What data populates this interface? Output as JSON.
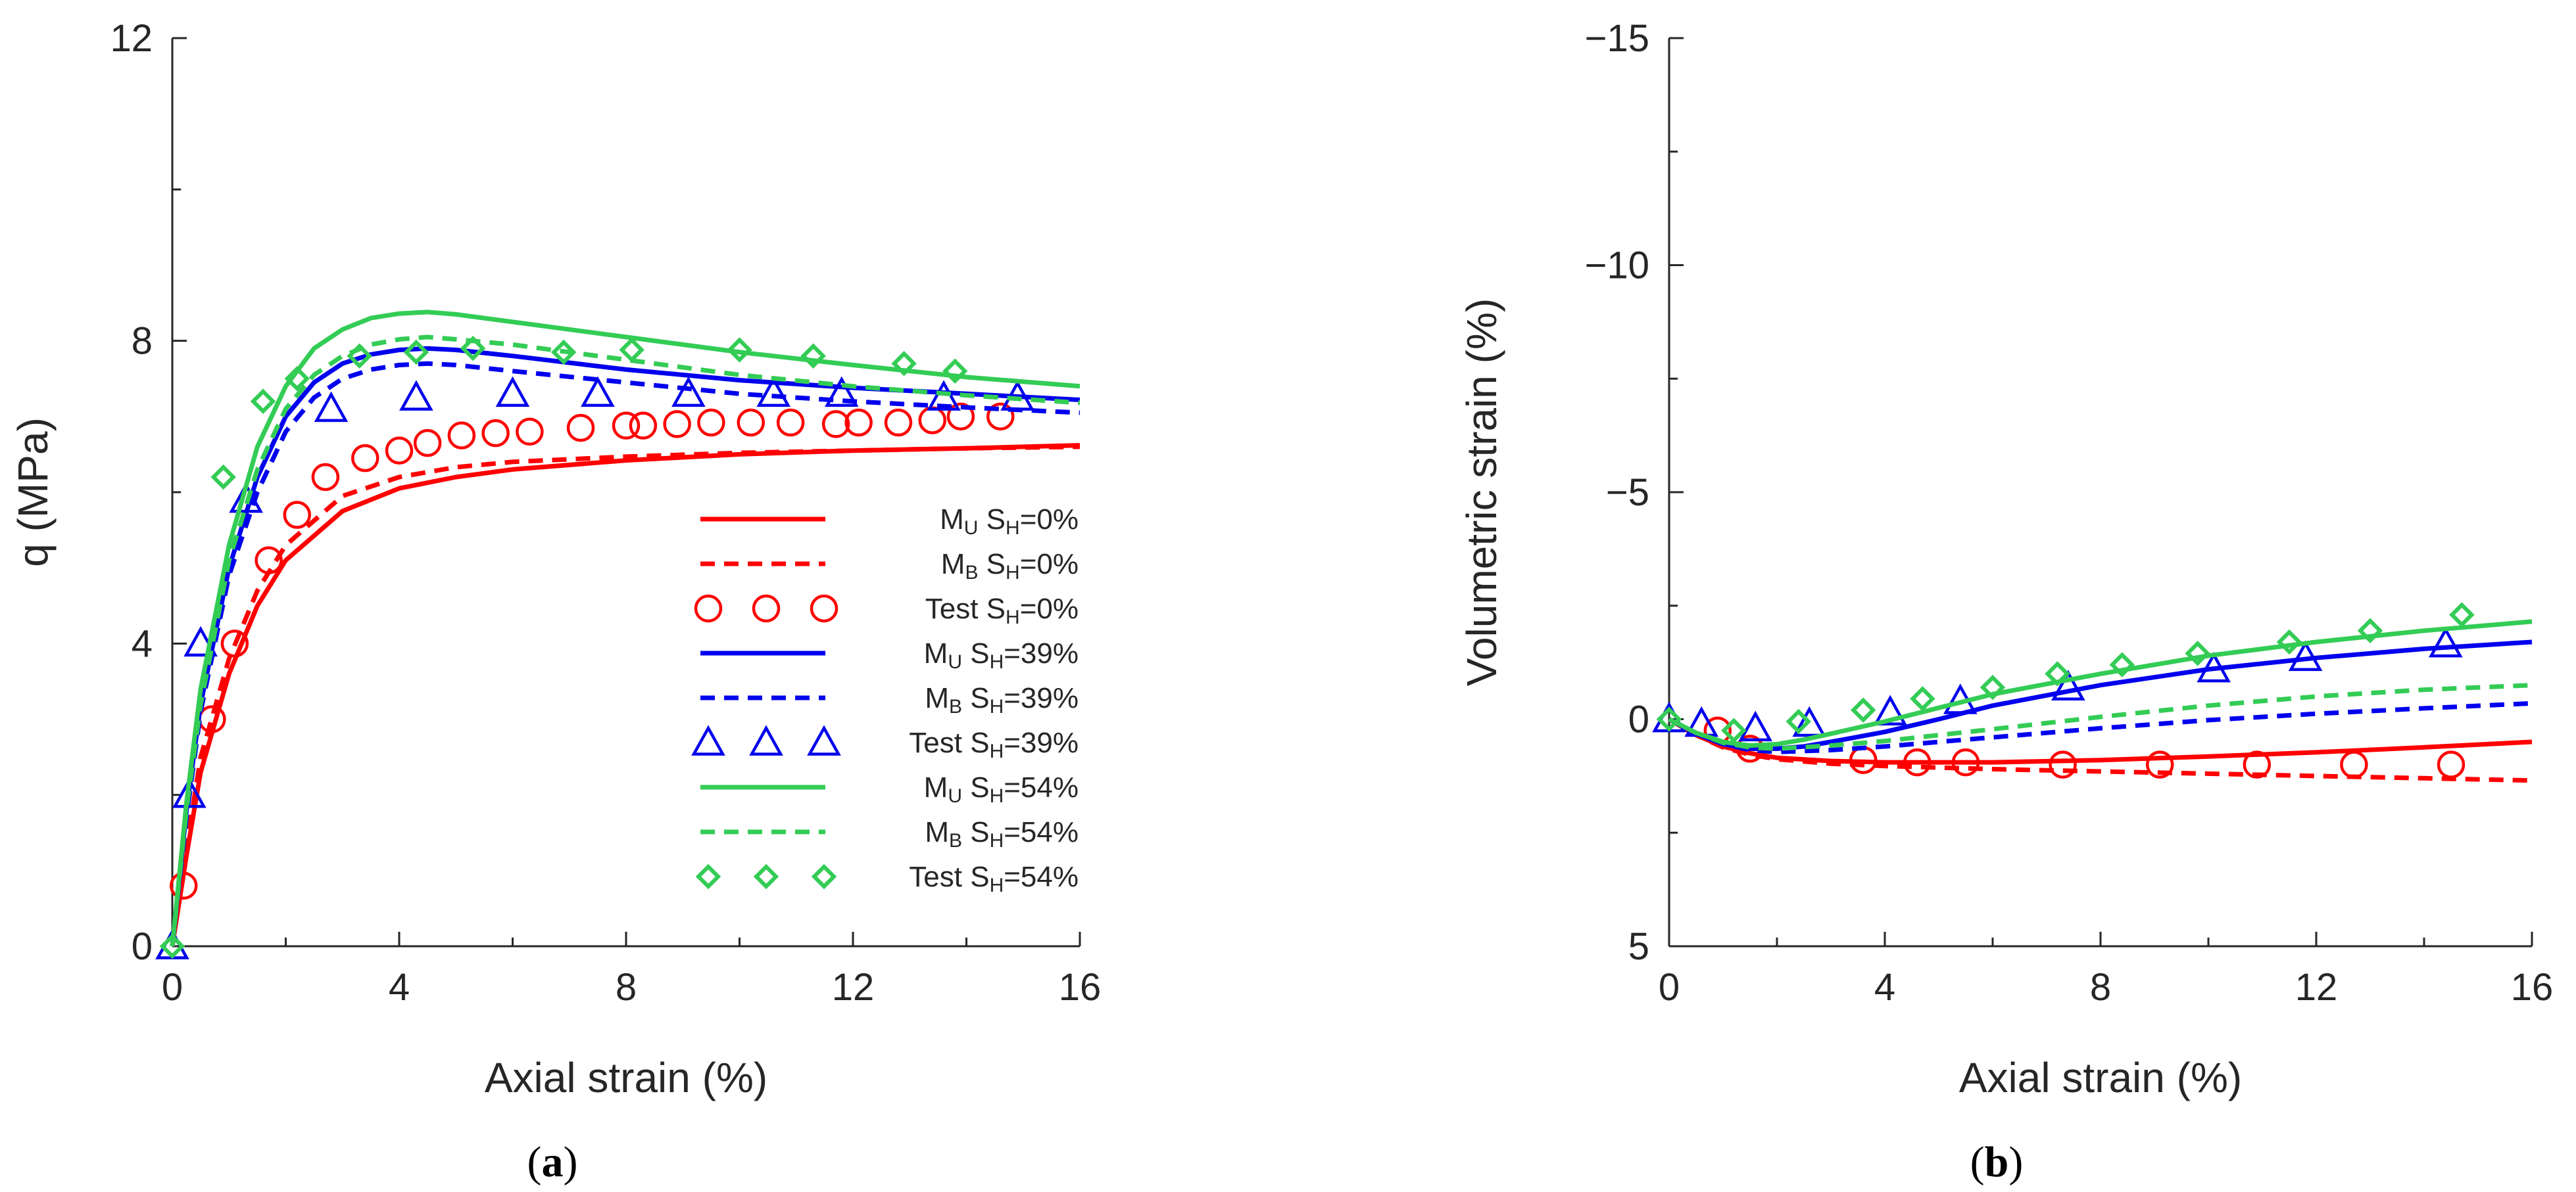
{
  "colors": {
    "s0": "#ff0000",
    "s39": "#0000ee",
    "s54": "#33cc55",
    "axis": "#262626"
  },
  "chart_data": [
    {
      "type": "line",
      "panel_label": "a",
      "xlabel": "Axial strain (%)",
      "ylabel": "q (MPa)",
      "xlim": [
        0,
        16
      ],
      "ylim": [
        0,
        12
      ],
      "y_inverted": false,
      "xticks": [
        "0",
        "4",
        "8",
        "12",
        "16"
      ],
      "yticks": [
        "0",
        "4",
        "8",
        "12"
      ],
      "xtick_values": [
        0,
        4,
        8,
        12,
        16
      ],
      "ytick_values": [
        0,
        4,
        8,
        12
      ],
      "legend": [
        {
          "main": "M",
          "sub": "U",
          "mid": " S",
          "sub2": "H",
          "tail": "=0%",
          "color": "s0",
          "style": "solid"
        },
        {
          "main": "M",
          "sub": "B",
          "mid": " S",
          "sub2": "H",
          "tail": "=0%",
          "color": "s0",
          "style": "dashed"
        },
        {
          "main": "Test S",
          "sub": "",
          "mid": "",
          "sub2": "H",
          "tail": "=0%",
          "color": "s0",
          "style": "circle"
        },
        {
          "main": "M",
          "sub": "U",
          "mid": " S",
          "sub2": "H",
          "tail": "=39%",
          "color": "s39",
          "style": "solid"
        },
        {
          "main": "M",
          "sub": "B",
          "mid": " S",
          "sub2": "H",
          "tail": "=39%",
          "color": "s39",
          "style": "dashed"
        },
        {
          "main": "Test S",
          "sub": "",
          "mid": "",
          "sub2": "H",
          "tail": "=39%",
          "color": "s39",
          "style": "triangle"
        },
        {
          "main": "M",
          "sub": "U",
          "mid": " S",
          "sub2": "H",
          "tail": "=54%",
          "color": "s54",
          "style": "solid"
        },
        {
          "main": "M",
          "sub": "B",
          "mid": " S",
          "sub2": "H",
          "tail": "=54%",
          "color": "s54",
          "style": "dashed"
        },
        {
          "main": "Test S",
          "sub": "",
          "mid": "",
          "sub2": "H",
          "tail": "=54%",
          "color": "s54",
          "style": "diamond"
        }
      ],
      "series": [
        {
          "name": "MU SH=0%",
          "color": "s0",
          "style": "solid",
          "x": [
            0,
            0.25,
            0.5,
            1,
            1.5,
            2,
            3,
            4,
            5,
            6,
            8,
            10,
            12,
            14,
            16
          ],
          "y": [
            0,
            1.2,
            2.3,
            3.6,
            4.5,
            5.1,
            5.75,
            6.05,
            6.2,
            6.3,
            6.42,
            6.5,
            6.55,
            6.58,
            6.62
          ]
        },
        {
          "name": "MB SH=0%",
          "color": "s0",
          "style": "dashed",
          "x": [
            0,
            0.25,
            0.5,
            1,
            1.5,
            2,
            3,
            4,
            5,
            6,
            8,
            10,
            12,
            14,
            16
          ],
          "y": [
            0,
            1.3,
            2.5,
            3.8,
            4.7,
            5.3,
            5.95,
            6.2,
            6.33,
            6.4,
            6.47,
            6.52,
            6.55,
            6.58,
            6.6
          ]
        },
        {
          "name": "Test SH=0%",
          "color": "s0",
          "style": "circle",
          "x": [
            0.2,
            0.7,
            1.1,
            1.7,
            2.2,
            2.7,
            3.4,
            4.0,
            4.5,
            5.1,
            5.7,
            6.3,
            7.2,
            8.0,
            8.3,
            8.9,
            9.5,
            10.2,
            10.9,
            11.7,
            12.1,
            12.8,
            13.4,
            13.9,
            14.6
          ],
          "y": [
            0.8,
            3.0,
            4.0,
            5.1,
            5.7,
            6.2,
            6.45,
            6.55,
            6.65,
            6.75,
            6.78,
            6.8,
            6.85,
            6.88,
            6.88,
            6.9,
            6.92,
            6.92,
            6.92,
            6.9,
            6.92,
            6.92,
            6.95,
            7.0,
            7.0
          ]
        },
        {
          "name": "MU SH=39%",
          "color": "s39",
          "style": "solid",
          "x": [
            0,
            0.25,
            0.5,
            1,
            1.5,
            2,
            2.5,
            3,
            3.5,
            4,
            4.5,
            5,
            6,
            8,
            10,
            12,
            14,
            16
          ],
          "y": [
            0,
            1.8,
            3.2,
            5.0,
            6.2,
            7.0,
            7.45,
            7.7,
            7.82,
            7.88,
            7.9,
            7.88,
            7.8,
            7.62,
            7.48,
            7.38,
            7.3,
            7.22
          ]
        },
        {
          "name": "MB SH=39%",
          "color": "s39",
          "style": "dashed",
          "x": [
            0,
            0.25,
            0.5,
            1,
            1.5,
            2,
            2.5,
            3,
            3.5,
            4,
            4.5,
            5,
            6,
            8,
            10,
            12,
            14,
            16
          ],
          "y": [
            0,
            1.7,
            3.1,
            4.9,
            6.0,
            6.8,
            7.25,
            7.5,
            7.62,
            7.68,
            7.7,
            7.68,
            7.6,
            7.45,
            7.3,
            7.2,
            7.12,
            7.05
          ]
        },
        {
          "name": "Test SH=39%",
          "color": "s39",
          "style": "triangle",
          "x": [
            0,
            0.3,
            0.5,
            1.3,
            2.8,
            4.3,
            6.0,
            7.5,
            9.1,
            10.6,
            11.8,
            13.6,
            14.9
          ],
          "y": [
            0,
            2.0,
            4.0,
            5.9,
            7.1,
            7.25,
            7.3,
            7.3,
            7.3,
            7.3,
            7.3,
            7.25,
            7.25
          ]
        },
        {
          "name": "MU SH=54%",
          "color": "s54",
          "style": "solid",
          "x": [
            0,
            0.25,
            0.5,
            1,
            1.5,
            2,
            2.5,
            3,
            3.5,
            4,
            4.5,
            5,
            6,
            8,
            10,
            12,
            14,
            16
          ],
          "y": [
            0,
            1.9,
            3.4,
            5.3,
            6.6,
            7.4,
            7.9,
            8.15,
            8.3,
            8.36,
            8.38,
            8.35,
            8.25,
            8.05,
            7.85,
            7.68,
            7.52,
            7.4
          ]
        },
        {
          "name": "MB SH=54%",
          "color": "s54",
          "style": "dashed",
          "x": [
            0,
            0.25,
            0.5,
            1,
            1.5,
            2,
            2.5,
            3,
            3.5,
            4,
            4.5,
            5,
            6,
            8,
            10,
            12,
            14,
            16
          ],
          "y": [
            0,
            1.8,
            3.2,
            5.1,
            6.3,
            7.1,
            7.55,
            7.8,
            7.95,
            8.02,
            8.05,
            8.02,
            7.95,
            7.75,
            7.55,
            7.4,
            7.28,
            7.18
          ]
        },
        {
          "name": "Test SH=54%",
          "color": "s54",
          "style": "diamond",
          "x": [
            0,
            0.9,
            1.6,
            2.2,
            3.3,
            4.3,
            5.3,
            6.9,
            8.1,
            10.0,
            11.3,
            12.9,
            13.8
          ],
          "y": [
            0,
            6.2,
            7.2,
            7.5,
            7.8,
            7.85,
            7.9,
            7.85,
            7.88,
            7.88,
            7.8,
            7.7,
            7.6
          ]
        }
      ]
    },
    {
      "type": "line",
      "panel_label": "b",
      "xlabel": "Axial strain (%)",
      "ylabel": "Volumetric strain (%)",
      "xlim": [
        0,
        16
      ],
      "ylim": [
        -15,
        5
      ],
      "y_inverted": true,
      "xticks": [
        "0",
        "4",
        "8",
        "12",
        "16"
      ],
      "yticks": [
        "−15",
        "−10",
        "−5",
        "0",
        "5"
      ],
      "xtick_values": [
        0,
        4,
        8,
        12,
        16
      ],
      "ytick_values": [
        -15,
        -10,
        -5,
        0,
        5
      ],
      "series": [
        {
          "name": "MU SH=0%",
          "color": "s0",
          "style": "solid",
          "x": [
            0,
            0.5,
            1,
            1.5,
            2,
            3,
            4,
            6,
            8,
            10,
            12,
            14,
            16
          ],
          "y": [
            0,
            0.35,
            0.6,
            0.75,
            0.85,
            0.92,
            0.95,
            0.95,
            0.9,
            0.82,
            0.73,
            0.62,
            0.5
          ]
        },
        {
          "name": "MB SH=0%",
          "color": "s0",
          "style": "dashed",
          "x": [
            0,
            0.5,
            1,
            1.5,
            2,
            3,
            4,
            6,
            8,
            10,
            12,
            14,
            16
          ],
          "y": [
            0,
            0.35,
            0.62,
            0.78,
            0.88,
            0.98,
            1.03,
            1.1,
            1.15,
            1.2,
            1.25,
            1.3,
            1.35
          ]
        },
        {
          "name": "Test SH=0%",
          "color": "s0",
          "style": "circle",
          "x": [
            0.9,
            1.5,
            3.6,
            4.6,
            5.5,
            7.3,
            9.1,
            10.9,
            12.7,
            14.5
          ],
          "y": [
            0.25,
            0.65,
            0.9,
            0.95,
            0.95,
            1.0,
            1.0,
            1.0,
            1.0,
            1.0
          ]
        },
        {
          "name": "MU SH=39%",
          "color": "s39",
          "style": "solid",
          "x": [
            0,
            0.5,
            1,
            1.5,
            2,
            2.5,
            3,
            4,
            5,
            6,
            8,
            10,
            12,
            14,
            16
          ],
          "y": [
            0,
            0.32,
            0.55,
            0.65,
            0.65,
            0.6,
            0.5,
            0.28,
            0.0,
            -0.3,
            -0.75,
            -1.1,
            -1.35,
            -1.55,
            -1.7
          ]
        },
        {
          "name": "MB SH=39%",
          "color": "s39",
          "style": "dashed",
          "x": [
            0,
            0.5,
            1,
            1.5,
            2,
            3,
            4,
            6,
            8,
            10,
            12,
            14,
            16
          ],
          "y": [
            0,
            0.32,
            0.55,
            0.68,
            0.72,
            0.68,
            0.6,
            0.4,
            0.2,
            0.02,
            -0.12,
            -0.24,
            -0.35
          ]
        },
        {
          "name": "Test SH=39%",
          "color": "s39",
          "style": "triangle",
          "x": [
            0,
            0.6,
            1.6,
            2.6,
            4.1,
            5.4,
            7.4,
            10.1,
            11.8,
            14.4
          ],
          "y": [
            0,
            0.1,
            0.2,
            0.1,
            -0.15,
            -0.4,
            -0.7,
            -1.1,
            -1.35,
            -1.65
          ]
        },
        {
          "name": "MU SH=54%",
          "color": "s54",
          "style": "solid",
          "x": [
            0,
            0.5,
            1,
            1.5,
            2,
            2.5,
            3,
            4,
            5,
            6,
            8,
            10,
            12,
            14,
            16
          ],
          "y": [
            0,
            0.3,
            0.5,
            0.58,
            0.55,
            0.45,
            0.32,
            0.05,
            -0.25,
            -0.55,
            -1.0,
            -1.4,
            -1.7,
            -1.95,
            -2.15
          ]
        },
        {
          "name": "MB SH=54%",
          "color": "s54",
          "style": "dashed",
          "x": [
            0,
            0.5,
            1,
            1.5,
            2,
            3,
            4,
            6,
            8,
            10,
            12,
            14,
            16
          ],
          "y": [
            0,
            0.3,
            0.52,
            0.62,
            0.65,
            0.58,
            0.48,
            0.22,
            -0.05,
            -0.3,
            -0.5,
            -0.65,
            -0.75
          ]
        },
        {
          "name": "Test SH=54%",
          "color": "s54",
          "style": "diamond",
          "x": [
            0,
            1.2,
            2.4,
            3.6,
            4.7,
            6.0,
            7.2,
            8.4,
            9.8,
            11.5,
            13.0,
            14.7
          ],
          "y": [
            0,
            0.25,
            0.05,
            -0.2,
            -0.45,
            -0.7,
            -1.0,
            -1.2,
            -1.45,
            -1.7,
            -1.95,
            -2.3
          ]
        }
      ]
    }
  ]
}
